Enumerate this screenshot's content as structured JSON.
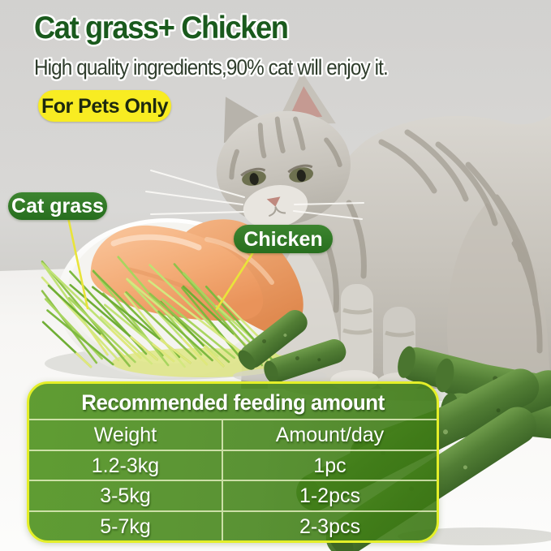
{
  "header": {
    "title": "Cat grass+ Chicken",
    "subtitle": "High quality ingredients,90% cat will enjoy it.",
    "badge": "For Pets Only"
  },
  "callouts": {
    "cat_grass": "Cat grass",
    "chicken": "Chicken"
  },
  "feeding_table": {
    "title": "Recommended feeding amount",
    "columns": [
      "Weight",
      "Amount/day"
    ],
    "rows": [
      [
        "1.2-3kg",
        "1pc"
      ],
      [
        "3-5kg",
        "1-2pcs"
      ],
      [
        "5-7kg",
        "2-3pcs"
      ]
    ]
  },
  "colors": {
    "title_green": "#1a5a1d",
    "badge_yellow": "#f8ec22",
    "label_pill_green": "#2e7a25",
    "table_green": "#4a8a1f",
    "table_border_yellow": "#e4ef29",
    "annotation_line_yellow": "#e9e43a"
  }
}
